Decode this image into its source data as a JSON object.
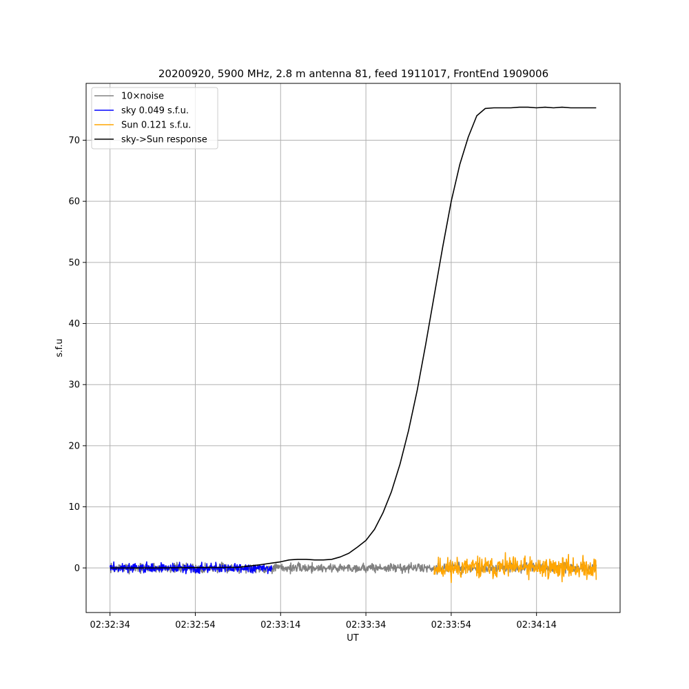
{
  "chart_data": {
    "type": "line",
    "title": "20200920, 5900 MHz, 2.8 m antenna 81, feed 1911017, FrontEnd 1909006",
    "xlabel": "UT",
    "ylabel": "s.f.u",
    "xlim_seconds": [
      -5.6,
      119.6
    ],
    "ylim": [
      -7.3,
      79.3
    ],
    "x_ticks": [
      {
        "t": 0,
        "label": "02:32:34"
      },
      {
        "t": 20,
        "label": "02:32:54"
      },
      {
        "t": 40,
        "label": "02:33:14"
      },
      {
        "t": 60,
        "label": "02:33:34"
      },
      {
        "t": 80,
        "label": "02:33:54"
      },
      {
        "t": 100,
        "label": "02:34:14"
      }
    ],
    "y_ticks": [
      0,
      10,
      20,
      30,
      40,
      50,
      60,
      70
    ],
    "grid": true,
    "legend_position": "upper-left",
    "series": [
      {
        "name": "10×noise",
        "color": "#808080",
        "kind": "noise",
        "t_start": 0,
        "t_end": 114,
        "amplitude": 0.55,
        "seed": 7
      },
      {
        "name": "sky 0.049 s.f.u.",
        "color": "#0000ff",
        "kind": "noise",
        "t_start": 0,
        "t_end": 38,
        "amplitude": 0.55,
        "seed": 3
      },
      {
        "name": "Sun 0.121 s.f.u.",
        "color": "#ffa500",
        "kind": "noise",
        "t_start": 76,
        "t_end": 114,
        "amplitude": 1.25,
        "seed": 11
      },
      {
        "name": "sky->Sun response",
        "color": "#000000",
        "kind": "line",
        "t": [
          0,
          10,
          20,
          30,
          35,
          38,
          40,
          42,
          44,
          46,
          48,
          50,
          52,
          54,
          56,
          58,
          60,
          62,
          64,
          66,
          68,
          70,
          72,
          74,
          76,
          78,
          80,
          82,
          84,
          86,
          88,
          90,
          92,
          94,
          96,
          98,
          100,
          102,
          104,
          106,
          108,
          110,
          112,
          114
        ],
        "values": [
          0.0,
          0.0,
          0.05,
          0.1,
          0.5,
          0.8,
          1.0,
          1.3,
          1.4,
          1.4,
          1.3,
          1.3,
          1.4,
          1.8,
          2.4,
          3.4,
          4.5,
          6.3,
          9.0,
          12.5,
          17.0,
          22.5,
          29.0,
          36.5,
          44.5,
          52.5,
          60.0,
          66.0,
          70.5,
          74.0,
          75.2,
          75.3,
          75.3,
          75.3,
          75.4,
          75.4,
          75.3,
          75.4,
          75.3,
          75.4,
          75.3,
          75.3,
          75.3,
          75.3
        ]
      }
    ]
  }
}
